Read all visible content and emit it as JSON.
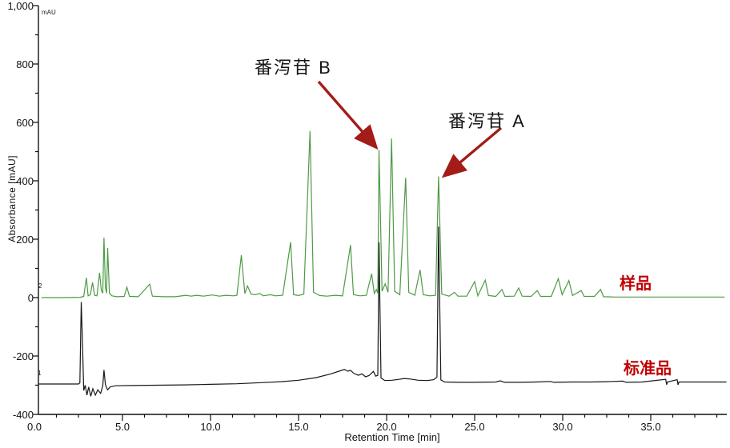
{
  "colors": {
    "sample_trace": "#4e9a45",
    "standard_trace": "#171717",
    "axis": "#111111",
    "annotation_text": "#c00000",
    "arrow": "#a31c17",
    "peak_label_text": "#141414",
    "background": "#ffffff"
  },
  "chart_data": {
    "type": "line",
    "title": "",
    "xlabel": "Retention Time [min]",
    "ylabel": "Absorbance [mAU]",
    "y_unit_label": "mAU",
    "xlim": [
      0,
      39.3
    ],
    "ylim": [
      -400,
      1000
    ],
    "grid": false,
    "x_major_ticks": [
      0,
      5,
      10,
      15,
      20,
      25,
      30,
      35
    ],
    "x_major_tick_labels": [
      "0.0",
      "5.0",
      "10.0",
      "15.0",
      "20.0",
      "25.0",
      "30.0",
      "35.0"
    ],
    "x_minor_step": 1.25,
    "y_major_ticks": [
      -400,
      -200,
      0,
      200,
      400,
      600,
      800,
      1000
    ],
    "y_major_tick_labels": [
      "-400",
      "-200",
      "0",
      "200",
      "400",
      "600",
      "800",
      "1,000"
    ],
    "y_minor_step": 100,
    "annotations": [
      {
        "text": "番泻苷 B",
        "peak_time_min": 19.6,
        "peak_mau": 505
      },
      {
        "text": "番泻苷 A",
        "peak_time_min": 23.0,
        "peak_mau": 415
      }
    ],
    "series": [
      {
        "id": "1",
        "name": "标准品",
        "color": "#171717",
        "baseline_mau": -295,
        "points": [
          [
            0.23,
            -296
          ],
          [
            1.5,
            -296
          ],
          [
            2.5,
            -296
          ],
          [
            2.58,
            -292
          ],
          [
            2.66,
            -15
          ],
          [
            2.74,
            -180
          ],
          [
            2.8,
            -318
          ],
          [
            2.88,
            -300
          ],
          [
            2.98,
            -334
          ],
          [
            3.08,
            -306
          ],
          [
            3.2,
            -338
          ],
          [
            3.32,
            -312
          ],
          [
            3.46,
            -334
          ],
          [
            3.6,
            -316
          ],
          [
            3.76,
            -328
          ],
          [
            3.88,
            -302
          ],
          [
            3.95,
            -248
          ],
          [
            4.03,
            -298
          ],
          [
            4.15,
            -316
          ],
          [
            4.3,
            -306
          ],
          [
            4.6,
            -302
          ],
          [
            5.5,
            -301
          ],
          [
            7.0,
            -300
          ],
          [
            8.5,
            -299
          ],
          [
            10.0,
            -297
          ],
          [
            11.5,
            -295
          ],
          [
            13.0,
            -291
          ],
          [
            14.0,
            -288
          ],
          [
            15.0,
            -283
          ],
          [
            16.0,
            -274
          ],
          [
            16.8,
            -262
          ],
          [
            17.3,
            -252
          ],
          [
            17.6,
            -246
          ],
          [
            17.8,
            -252
          ],
          [
            17.95,
            -249
          ],
          [
            18.15,
            -260
          ],
          [
            18.4,
            -266
          ],
          [
            18.6,
            -261
          ],
          [
            18.8,
            -271
          ],
          [
            19.0,
            -267
          ],
          [
            19.25,
            -253
          ],
          [
            19.38,
            -269
          ],
          [
            19.5,
            -266
          ],
          [
            19.57,
            189
          ],
          [
            19.68,
            -275
          ],
          [
            19.9,
            -284
          ],
          [
            20.3,
            -283
          ],
          [
            20.7,
            -280
          ],
          [
            21.0,
            -277
          ],
          [
            21.35,
            -279
          ],
          [
            21.8,
            -283
          ],
          [
            22.3,
            -284
          ],
          [
            22.68,
            -281
          ],
          [
            22.86,
            -272
          ],
          [
            22.95,
            243
          ],
          [
            23.08,
            -282
          ],
          [
            23.3,
            -289
          ],
          [
            24.0,
            -290
          ],
          [
            25.0,
            -290
          ],
          [
            26.2,
            -289
          ],
          [
            26.45,
            -285
          ],
          [
            26.7,
            -290
          ],
          [
            27.5,
            -290
          ],
          [
            28.5,
            -289
          ],
          [
            29.3,
            -287
          ],
          [
            29.5,
            -290
          ],
          [
            30.5,
            -289
          ],
          [
            31.5,
            -289
          ],
          [
            32.5,
            -288
          ],
          [
            33.4,
            -286
          ],
          [
            33.6,
            -290
          ],
          [
            34.5,
            -289
          ],
          [
            35.85,
            -280
          ],
          [
            35.9,
            -298
          ],
          [
            35.95,
            -289
          ],
          [
            36.5,
            -281
          ],
          [
            36.55,
            -299
          ],
          [
            36.6,
            -289
          ],
          [
            37.5,
            -289
          ],
          [
            39.3,
            -289
          ]
        ]
      },
      {
        "id": "2",
        "name": "样品",
        "color": "#4e9a45",
        "baseline_mau": 0,
        "points": [
          [
            0.4,
            0
          ],
          [
            1.5,
            0
          ],
          [
            2.6,
            1
          ],
          [
            2.8,
            4
          ],
          [
            2.95,
            68
          ],
          [
            3.05,
            6
          ],
          [
            3.18,
            10
          ],
          [
            3.3,
            52
          ],
          [
            3.42,
            8
          ],
          [
            3.55,
            6
          ],
          [
            3.7,
            85
          ],
          [
            3.8,
            25
          ],
          [
            3.88,
            15
          ],
          [
            3.95,
            205
          ],
          [
            4.03,
            35
          ],
          [
            4.1,
            15
          ],
          [
            4.16,
            170
          ],
          [
            4.26,
            15
          ],
          [
            4.4,
            6
          ],
          [
            4.7,
            3
          ],
          [
            5.1,
            4
          ],
          [
            5.25,
            36
          ],
          [
            5.4,
            4
          ],
          [
            5.9,
            3
          ],
          [
            6.55,
            46
          ],
          [
            6.7,
            5
          ],
          [
            7.3,
            3
          ],
          [
            8.0,
            3
          ],
          [
            8.6,
            8
          ],
          [
            8.9,
            5
          ],
          [
            9.2,
            8
          ],
          [
            9.6,
            5
          ],
          [
            10.1,
            9
          ],
          [
            10.5,
            5
          ],
          [
            10.9,
            8
          ],
          [
            11.3,
            6
          ],
          [
            11.5,
            8
          ],
          [
            11.75,
            145
          ],
          [
            11.95,
            14
          ],
          [
            12.1,
            40
          ],
          [
            12.3,
            12
          ],
          [
            12.55,
            10
          ],
          [
            12.8,
            14
          ],
          [
            13.0,
            6
          ],
          [
            13.4,
            10
          ],
          [
            13.7,
            6
          ],
          [
            14.1,
            8
          ],
          [
            14.55,
            190
          ],
          [
            14.72,
            10
          ],
          [
            15.0,
            7
          ],
          [
            15.3,
            12
          ],
          [
            15.65,
            570
          ],
          [
            15.85,
            18
          ],
          [
            16.2,
            7
          ],
          [
            16.6,
            5
          ],
          [
            17.1,
            8
          ],
          [
            17.5,
            6
          ],
          [
            17.95,
            180
          ],
          [
            18.12,
            10
          ],
          [
            18.5,
            6
          ],
          [
            18.85,
            8
          ],
          [
            19.15,
            82
          ],
          [
            19.3,
            14
          ],
          [
            19.42,
            28
          ],
          [
            19.5,
            16
          ],
          [
            19.57,
            505
          ],
          [
            19.74,
            22
          ],
          [
            19.92,
            47
          ],
          [
            20.08,
            18
          ],
          [
            20.28,
            545
          ],
          [
            20.46,
            22
          ],
          [
            20.75,
            10
          ],
          [
            21.08,
            410
          ],
          [
            21.26,
            18
          ],
          [
            21.6,
            8
          ],
          [
            21.9,
            95
          ],
          [
            22.08,
            10
          ],
          [
            22.45,
            6
          ],
          [
            22.78,
            8
          ],
          [
            22.95,
            415
          ],
          [
            23.13,
            12
          ],
          [
            23.55,
            5
          ],
          [
            23.85,
            18
          ],
          [
            24.05,
            5
          ],
          [
            24.55,
            5
          ],
          [
            25.0,
            55
          ],
          [
            25.18,
            6
          ],
          [
            25.6,
            60
          ],
          [
            25.78,
            7
          ],
          [
            26.2,
            4
          ],
          [
            26.55,
            28
          ],
          [
            26.72,
            4
          ],
          [
            27.25,
            5
          ],
          [
            27.5,
            33
          ],
          [
            27.7,
            5
          ],
          [
            28.2,
            4
          ],
          [
            28.55,
            24
          ],
          [
            28.75,
            4
          ],
          [
            29.35,
            4
          ],
          [
            29.75,
            65
          ],
          [
            29.97,
            10
          ],
          [
            30.35,
            58
          ],
          [
            30.56,
            7
          ],
          [
            31.05,
            24
          ],
          [
            31.22,
            4
          ],
          [
            31.8,
            4
          ],
          [
            32.15,
            28
          ],
          [
            32.32,
            3
          ],
          [
            33.0,
            2
          ],
          [
            34.5,
            2
          ],
          [
            36.0,
            2
          ],
          [
            37.5,
            2
          ],
          [
            39.2,
            2
          ]
        ]
      }
    ]
  }
}
